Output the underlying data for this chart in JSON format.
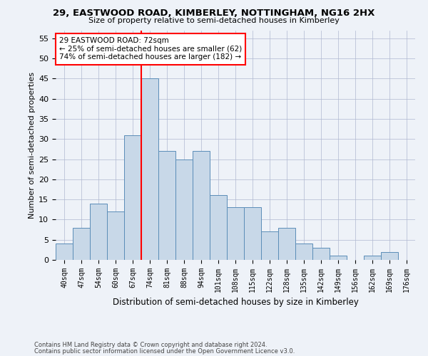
{
  "title1": "29, EASTWOOD ROAD, KIMBERLEY, NOTTINGHAM, NG16 2HX",
  "title2": "Size of property relative to semi-detached houses in Kimberley",
  "xlabel": "Distribution of semi-detached houses by size in Kimberley",
  "ylabel": "Number of semi-detached properties",
  "categories": [
    "40sqm",
    "47sqm",
    "54sqm",
    "60sqm",
    "67sqm",
    "74sqm",
    "81sqm",
    "88sqm",
    "94sqm",
    "101sqm",
    "108sqm",
    "115sqm",
    "122sqm",
    "128sqm",
    "135sqm",
    "142sqm",
    "149sqm",
    "156sqm",
    "162sqm",
    "169sqm",
    "176sqm"
  ],
  "values": [
    4,
    8,
    14,
    12,
    31,
    45,
    27,
    25,
    27,
    16,
    13,
    13,
    7,
    8,
    4,
    3,
    1,
    0,
    1,
    2,
    0
  ],
  "bar_color": "#c8d8e8",
  "bar_edge_color": "#5b8db8",
  "vline_color": "red",
  "annotation_title": "29 EASTWOOD ROAD: 72sqm",
  "annotation_line1": "← 25% of semi-detached houses are smaller (62)",
  "annotation_line2": "74% of semi-detached houses are larger (182) →",
  "annotation_box_color": "white",
  "annotation_box_edge": "red",
  "ylim": [
    0,
    57
  ],
  "yticks": [
    0,
    5,
    10,
    15,
    20,
    25,
    30,
    35,
    40,
    45,
    50,
    55
  ],
  "footnote1": "Contains HM Land Registry data © Crown copyright and database right 2024.",
  "footnote2": "Contains public sector information licensed under the Open Government Licence v3.0.",
  "bg_color": "#eef2f8",
  "grid_color": "#b0b8d0"
}
